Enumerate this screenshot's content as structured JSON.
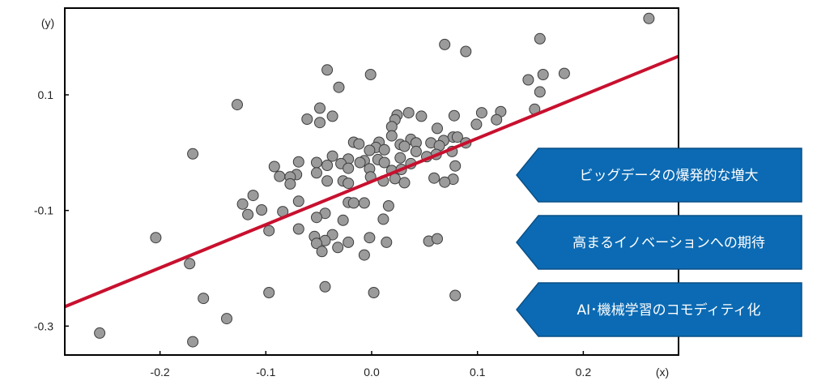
{
  "chart_data": {
    "type": "scatter",
    "x_unit_label": "(x)",
    "y_unit_label": "(y)",
    "xlim": [
      -0.29,
      0.29
    ],
    "ylim": [
      -0.35,
      0.25
    ],
    "x_ticks": [
      -0.2,
      -0.1,
      0.0,
      0.1,
      0.2
    ],
    "x_tick_labels": [
      "-0.2",
      "-0.1",
      "0.0",
      "0.1",
      "0.2"
    ],
    "y_ticks": [
      0.1,
      -0.1,
      -0.3
    ],
    "y_tick_labels": [
      "0.1",
      "-0.1",
      "-0.3"
    ],
    "grid": false,
    "regression_line": {
      "x": [
        -0.29,
        0.29
      ],
      "y": [
        -0.2664,
        0.1667
      ]
    },
    "points": [
      [
        0.262,
        0.232
      ],
      [
        0.159,
        0.197
      ],
      [
        0.069,
        0.187
      ],
      [
        0.089,
        0.175
      ],
      [
        -0.042,
        0.143
      ],
      [
        -0.001,
        0.135
      ],
      [
        0.182,
        0.137
      ],
      [
        0.162,
        0.135
      ],
      [
        0.148,
        0.126
      ],
      [
        -0.031,
        0.113
      ],
      [
        0.159,
        0.105
      ],
      [
        -0.127,
        0.083
      ],
      [
        -0.049,
        0.077
      ],
      [
        0.035,
        0.069
      ],
      [
        0.154,
        0.075
      ],
      [
        0.122,
        0.071
      ],
      [
        0.104,
        0.069
      ],
      [
        0.078,
        0.064
      ],
      [
        0.024,
        0.065
      ],
      [
        0.047,
        0.063
      ],
      [
        0.022,
        0.057
      ],
      [
        0.118,
        0.057
      ],
      [
        -0.037,
        0.063
      ],
      [
        -0.061,
        0.058
      ],
      [
        0.019,
        0.045
      ],
      [
        -0.049,
        0.052
      ],
      [
        0.099,
        0.049
      ],
      [
        0.062,
        0.042
      ],
      [
        0.019,
        0.029
      ],
      [
        0.077,
        0.027
      ],
      [
        0.037,
        0.023
      ],
      [
        0.056,
        0.017
      ],
      [
        0.068,
        0.021
      ],
      [
        0.081,
        0.027
      ],
      [
        0.089,
        0.017
      ],
      [
        -0.017,
        0.018
      ],
      [
        0.007,
        0.018
      ],
      [
        0.042,
        0.017
      ],
      [
        0.064,
        0.012
      ],
      [
        -0.012,
        0.015
      ],
      [
        0.004,
        0.009
      ],
      [
        0.027,
        0.014
      ],
      [
        0.012,
        0.005
      ],
      [
        0.031,
        0.011
      ],
      [
        -0.002,
        0.004
      ],
      [
        0.042,
        0.002
      ],
      [
        0.076,
        0.002
      ],
      [
        0.061,
        -0.003
      ],
      [
        -0.169,
        -0.002
      ],
      [
        -0.037,
        -0.006
      ],
      [
        0.052,
        -0.007
      ],
      [
        0.027,
        -0.009
      ],
      [
        -0.007,
        -0.014
      ],
      [
        0.006,
        -0.012
      ],
      [
        -0.022,
        -0.011
      ],
      [
        0.012,
        -0.017
      ],
      [
        0.037,
        -0.019
      ],
      [
        -0.052,
        -0.017
      ],
      [
        -0.029,
        -0.019
      ],
      [
        -0.011,
        -0.017
      ],
      [
        -0.069,
        -0.016
      ],
      [
        -0.092,
        -0.024
      ],
      [
        -0.042,
        -0.022
      ],
      [
        0.079,
        -0.023
      ],
      [
        0.019,
        -0.031
      ],
      [
        -0.002,
        -0.028
      ],
      [
        -0.022,
        -0.027
      ],
      [
        0.028,
        -0.029
      ],
      [
        -0.052,
        -0.035
      ],
      [
        -0.071,
        -0.038
      ],
      [
        -0.087,
        -0.041
      ],
      [
        -0.077,
        -0.042
      ],
      [
        0.059,
        -0.044
      ],
      [
        -0.001,
        -0.042
      ],
      [
        0.022,
        -0.045
      ],
      [
        0.077,
        -0.046
      ],
      [
        -0.042,
        -0.049
      ],
      [
        -0.027,
        -0.049
      ],
      [
        0.031,
        -0.052
      ],
      [
        0.069,
        -0.051
      ],
      [
        0.011,
        -0.049
      ],
      [
        -0.022,
        -0.053
      ],
      [
        -0.077,
        -0.054
      ],
      [
        -0.112,
        -0.074
      ],
      [
        -0.122,
        -0.089
      ],
      [
        -0.104,
        -0.099
      ],
      [
        -0.069,
        -0.084
      ],
      [
        -0.022,
        -0.086
      ],
      [
        -0.007,
        -0.087
      ],
      [
        0.016,
        -0.092
      ],
      [
        -0.044,
        -0.105
      ],
      [
        -0.017,
        -0.087
      ],
      [
        -0.117,
        -0.107
      ],
      [
        -0.084,
        -0.102
      ],
      [
        -0.052,
        -0.112
      ],
      [
        0.011,
        -0.115
      ],
      [
        -0.027,
        -0.117
      ],
      [
        -0.069,
        -0.132
      ],
      [
        -0.097,
        -0.135
      ],
      [
        -0.037,
        -0.142
      ],
      [
        -0.054,
        -0.145
      ],
      [
        -0.044,
        -0.152
      ],
      [
        -0.022,
        -0.155
      ],
      [
        0.014,
        -0.155
      ],
      [
        0.054,
        -0.153
      ],
      [
        0.062,
        -0.149
      ],
      [
        -0.002,
        -0.147
      ],
      [
        -0.052,
        -0.157
      ],
      [
        -0.032,
        -0.164
      ],
      [
        -0.047,
        -0.171
      ],
      [
        -0.204,
        -0.147
      ],
      [
        -0.007,
        -0.177
      ],
      [
        -0.172,
        -0.192
      ],
      [
        -0.044,
        -0.232
      ],
      [
        -0.097,
        -0.242
      ],
      [
        0.002,
        -0.242
      ],
      [
        0.079,
        -0.247
      ],
      [
        -0.159,
        -0.252
      ],
      [
        -0.137,
        -0.287
      ],
      [
        -0.257,
        -0.312
      ],
      [
        -0.169,
        -0.327
      ]
    ]
  },
  "colors": {
    "point_fill": "#9b9b9b",
    "point_stroke": "#3c3c3c",
    "regression_line": "#c8102e",
    "axis": "#000000",
    "callout_fill": "#0b6ab3",
    "callout_stroke": "#0a4f86",
    "callout_text": "#ffffff"
  },
  "callouts": [
    {
      "label": "ビッグデータの爆発的な増大"
    },
    {
      "label": "高まるイノベーションへの期待"
    },
    {
      "label": "AI･機械学習のコモディティ化"
    }
  ]
}
